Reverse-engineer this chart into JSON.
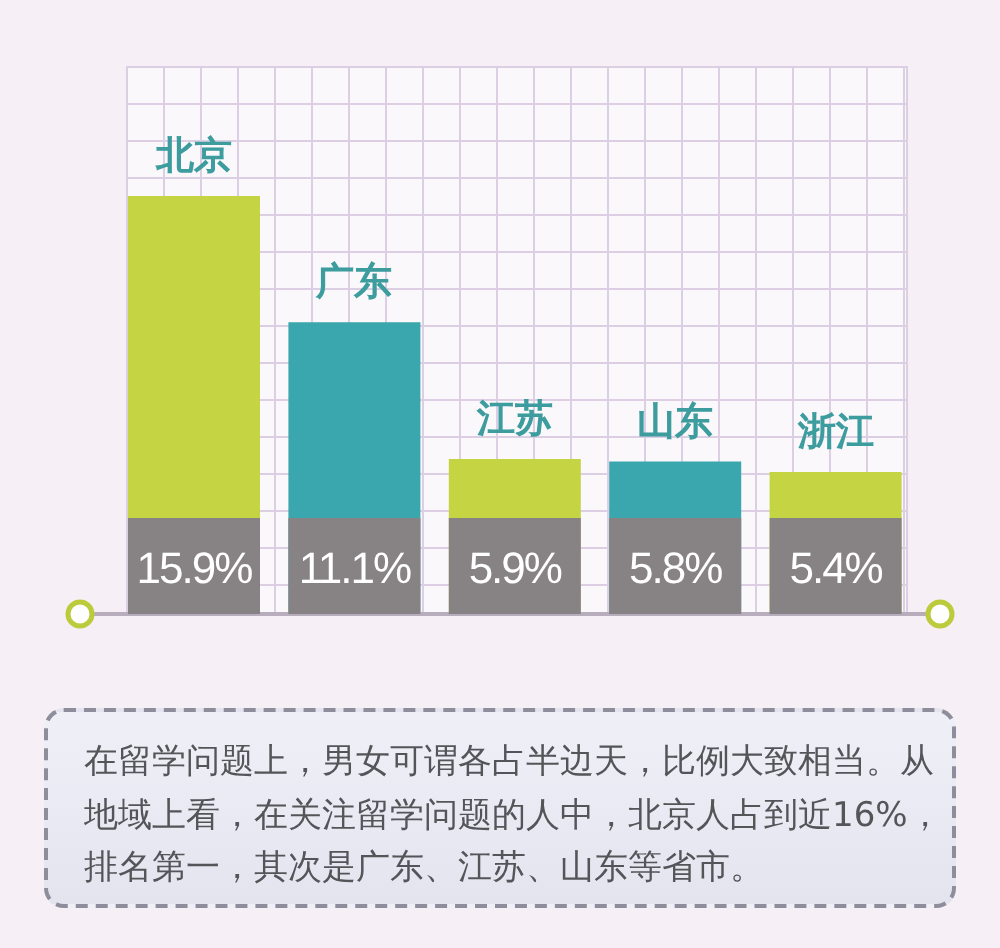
{
  "chart_data": {
    "type": "bar",
    "categories": [
      "北京",
      "广东",
      "江苏",
      "山东",
      "浙江"
    ],
    "values": [
      15.9,
      11.1,
      5.9,
      5.8,
      5.4
    ],
    "colors": [
      "#c4d443",
      "#3aa6ad",
      "#c4d443",
      "#3aa6ad",
      "#c4d443"
    ],
    "value_labels": [
      "15.9%",
      "11.1%",
      "5.9%",
      "5.8%",
      "5.4%"
    ],
    "annotations": [
      "在留学问题上，男女可谓各占半边天，比例大致相当。从地域上看，在关注留学问题的人中，北京人占到近16%，排名第一，其次是广东、江苏、山东等省市。"
    ]
  }
}
